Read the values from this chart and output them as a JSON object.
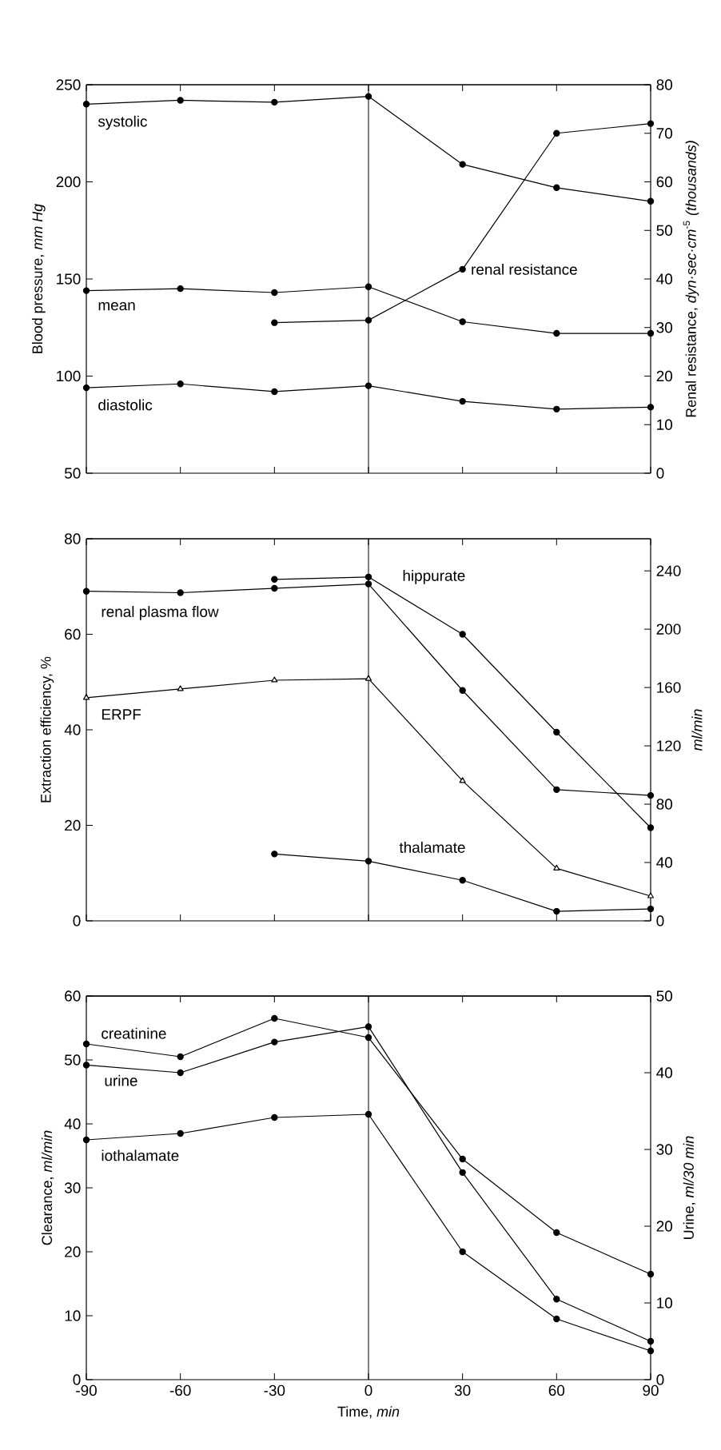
{
  "chart_data": [
    {
      "type": "line",
      "x": [
        -90,
        -60,
        -30,
        0,
        30,
        60,
        90
      ],
      "xlim": [
        -90,
        90
      ],
      "xticks": [
        -90,
        -60,
        -30,
        0,
        30,
        60,
        90
      ],
      "tick_labels": "y",
      "ylabel": "Blood pressure, *mm Hg*",
      "y2label": "Renal resistance, *dyn·sec·cm*$^{-5}$ *(thousands)*",
      "ylim": [
        50,
        250
      ],
      "yticks": [
        50,
        100,
        150,
        200,
        250
      ],
      "y2lim": [
        0,
        80
      ],
      "y2ticks": [
        0,
        10,
        20,
        30,
        40,
        50,
        60,
        70,
        80
      ],
      "marker": "circle",
      "line_style": "solid",
      "ref_lines": [
        {
          "axis": "x",
          "value": 0,
          "color": "#000000"
        }
      ],
      "series": [
        {
          "name": "systolic",
          "color": "#000000",
          "values": [
            240,
            242,
            241,
            244,
            209,
            197,
            190
          ]
        },
        {
          "name": "mean",
          "color": "#000000",
          "values": [
            144,
            145,
            143,
            146,
            128,
            122,
            122
          ]
        },
        {
          "name": "diastolic",
          "color": "#000000",
          "values": [
            94,
            96,
            92,
            95,
            87,
            83,
            84
          ]
        },
        {
          "name": "renal resistance",
          "color": "#000000",
          "axis": "y2",
          "values": [
            null,
            null,
            31,
            31.5,
            42,
            70,
            72
          ]
        }
      ]
    },
    {
      "type": "line",
      "x": [
        -90,
        -60,
        -30,
        0,
        30,
        60,
        90
      ],
      "xlim": [
        -90,
        90
      ],
      "xticks": [
        -90,
        -60,
        -30,
        0,
        30,
        60,
        90
      ],
      "tick_labels": "y",
      "ylabel": "Extraction efficiency, %",
      "y2label": "*ml/min*",
      "ylim": [
        0,
        80
      ],
      "yticks": [
        0,
        20,
        40,
        60,
        80
      ],
      "y2lim": [
        0,
        262
      ],
      "y2ticks": [
        0,
        40,
        80,
        120,
        160,
        200,
        240
      ],
      "marker": "circle",
      "line_style": "solid",
      "ref_lines": [
        {
          "axis": "x",
          "value": 0,
          "color": "#000000"
        }
      ],
      "series": [
        {
          "name": "hippurate",
          "color": "#000000",
          "values": [
            null,
            null,
            71.5,
            72,
            60,
            39.5,
            19.5
          ]
        },
        {
          "name": "thalamate",
          "color": "#000000",
          "values": [
            null,
            null,
            14,
            12.5,
            8.5,
            2,
            2.5
          ]
        },
        {
          "name": "renal plasma flow",
          "color": "#000000",
          "axis": "y2",
          "values": [
            226,
            225,
            228,
            231,
            158,
            90,
            86
          ]
        },
        {
          "name": "ERPF",
          "color": "#000000",
          "axis": "y2",
          "marker": "triangle",
          "values": [
            153,
            159,
            165,
            166,
            96,
            36,
            17
          ]
        }
      ]
    },
    {
      "type": "line",
      "x": [
        -90,
        -60,
        -30,
        0,
        30,
        60,
        90
      ],
      "xlim": [
        -90,
        90
      ],
      "xticks": [
        -90,
        -60,
        -30,
        0,
        30,
        60,
        90
      ],
      "xlabel": "Time, *min*",
      "ylabel": "Clearance, *ml/min*",
      "y2label": "Urine, *ml/30 min*",
      "ylim": [
        0,
        60
      ],
      "yticks": [
        0,
        10,
        20,
        30,
        40,
        50,
        60
      ],
      "y2lim": [
        0,
        50
      ],
      "y2ticks": [
        0,
        10,
        20,
        30,
        40,
        50
      ],
      "marker": "circle",
      "line_style": "solid",
      "ref_lines": [
        {
          "axis": "x",
          "value": 0,
          "color": "#000000"
        }
      ],
      "series": [
        {
          "name": "creatinine",
          "color": "#000000",
          "values": [
            52.5,
            50.5,
            56.5,
            53.5,
            34.5,
            23,
            16.5
          ]
        },
        {
          "name": "urine",
          "color": "#000000",
          "axis": "y2",
          "values": [
            41,
            40,
            44,
            46,
            27,
            10.5,
            5
          ]
        },
        {
          "name": "iothalamate",
          "color": "#000000",
          "values": [
            37.5,
            38.5,
            41,
            41.5,
            20,
            9.5,
            4.5
          ]
        }
      ]
    }
  ]
}
